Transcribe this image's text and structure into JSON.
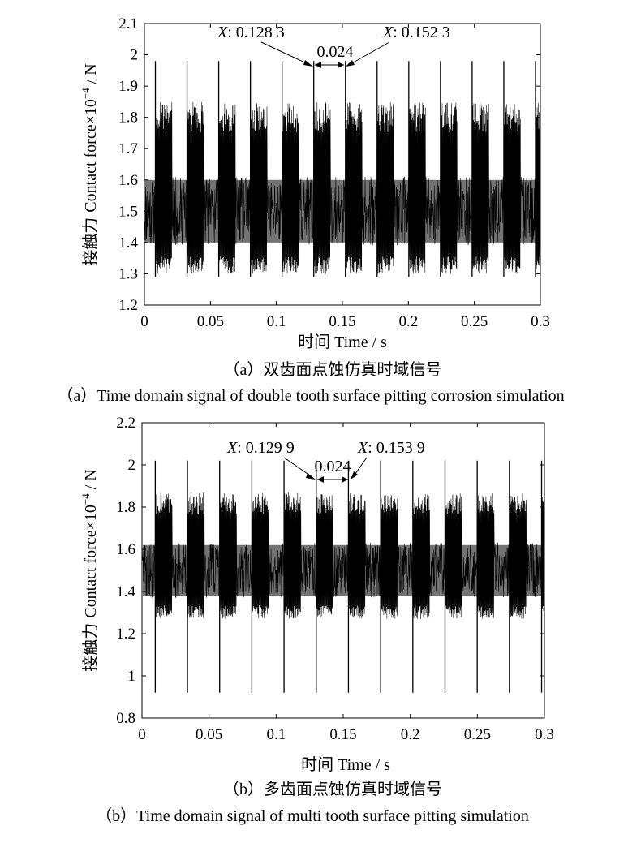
{
  "chart_data": [
    {
      "type": "line",
      "title": "",
      "xlabel": "时间 Time / s",
      "ylabel_cn": "接触力",
      "ylabel_en": "Contact force×10",
      "ylabel_exp": "−4",
      "ylabel_unit": " / N",
      "xlim": [
        0,
        0.3
      ],
      "ylim": [
        1.2,
        2.1
      ],
      "xticks": [
        0,
        0.05,
        0.1,
        0.15,
        0.2,
        0.25,
        0.3
      ],
      "xtick_labels": [
        "0",
        "0.05",
        "0.1",
        "0.15",
        "0.2",
        "0.25",
        "0.3"
      ],
      "yticks": [
        1.2,
        1.3,
        1.4,
        1.5,
        1.6,
        1.7,
        1.8,
        1.9,
        2.0,
        2.1
      ],
      "ytick_labels": [
        "1.2",
        "1.3",
        "1.4",
        "1.5",
        "1.6",
        "1.7",
        "1.8",
        "1.9",
        "2",
        "2.1"
      ],
      "grid": false,
      "signal": {
        "baseline": 1.5,
        "spike_period": 0.024,
        "spike_first": 0.0083,
        "spike_peak": 1.98,
        "spike_trough": 1.29,
        "upper_envelope": 1.85,
        "lower_envelope": 1.3,
        "core_band": [
          1.4,
          1.6
        ]
      },
      "annotations": [
        {
          "x": 0.1283,
          "prefix": "X",
          "text": ": 0.128 3"
        },
        {
          "x": 0.1523,
          "prefix": "X",
          "text": ": 0.152 3"
        },
        {
          "text": "0.024",
          "from": 0.1283,
          "to": 0.1523,
          "y": 1.965
        }
      ],
      "caption_cn": "（a）双齿面点蚀仿真时域信号",
      "caption_en": "（a）Time domain signal of double tooth surface pitting corrosion simulation"
    },
    {
      "type": "line",
      "title": "",
      "xlabel": "时间 Time / s",
      "ylabel_cn": "接触力",
      "ylabel_en": "Contact force×10",
      "ylabel_exp": "−4",
      "ylabel_unit": " / N",
      "xlim": [
        0,
        0.3
      ],
      "ylim": [
        0.8,
        2.2
      ],
      "xticks": [
        0,
        0.05,
        0.1,
        0.15,
        0.2,
        0.25,
        0.3
      ],
      "xtick_labels": [
        "0",
        "0.05",
        "0.1",
        "0.15",
        "0.2",
        "0.25",
        "0.3"
      ],
      "yticks": [
        0.8,
        1.0,
        1.2,
        1.4,
        1.6,
        1.8,
        2.0,
        2.2
      ],
      "ytick_labels": [
        "0.8",
        "1",
        "1.2",
        "1.4",
        "1.6",
        "1.8",
        "2",
        "2.2"
      ],
      "grid": false,
      "signal": {
        "baseline": 1.5,
        "spike_period": 0.024,
        "spike_first": 0.0099,
        "spike_peak": 2.02,
        "spike_trough": 0.92,
        "upper_envelope": 1.87,
        "lower_envelope": 1.27,
        "core_band": [
          1.38,
          1.62
        ]
      },
      "annotations": [
        {
          "x": 0.1299,
          "prefix": "X",
          "text": ": 0.129 9"
        },
        {
          "x": 0.1539,
          "prefix": "X",
          "text": ": 0.153 9"
        },
        {
          "text": "0.024",
          "from": 0.1299,
          "to": 0.1539,
          "y": 1.955
        }
      ],
      "caption_cn": "（b）多齿面点蚀仿真时域信号",
      "caption_en": "（b）Time domain signal of multi tooth surface pitting simulation"
    }
  ]
}
